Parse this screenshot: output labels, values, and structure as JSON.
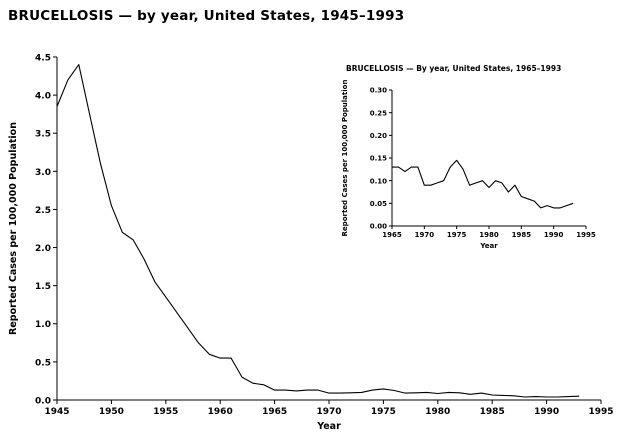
{
  "header": {
    "title": "BRUCELLOSIS — by year, United States, 1945–1993"
  },
  "chart_data": [
    {
      "type": "line",
      "title": "BRUCELLOSIS — by year, United States, 1945–1993",
      "xlabel": "Year",
      "ylabel": "Reported Cases per 100,000 Population",
      "xlim": [
        1945,
        1995
      ],
      "ylim": [
        0,
        4.5
      ],
      "xticks": [
        1945,
        1950,
        1955,
        1960,
        1965,
        1970,
        1975,
        1980,
        1985,
        1990,
        1995
      ],
      "yticks": [
        0.0,
        0.5,
        1.0,
        1.5,
        2.0,
        2.5,
        3.0,
        3.5,
        4.0,
        4.5
      ],
      "grid": false,
      "legend": "none",
      "line_color": "#000000",
      "x": [
        1945,
        1946,
        1947,
        1948,
        1949,
        1950,
        1951,
        1952,
        1953,
        1954,
        1955,
        1956,
        1957,
        1958,
        1959,
        1960,
        1961,
        1962,
        1963,
        1964,
        1965,
        1966,
        1967,
        1968,
        1969,
        1970,
        1971,
        1972,
        1973,
        1974,
        1975,
        1976,
        1977,
        1978,
        1979,
        1980,
        1981,
        1982,
        1983,
        1984,
        1985,
        1986,
        1987,
        1988,
        1989,
        1990,
        1991,
        1992,
        1993
      ],
      "y": [
        3.85,
        4.2,
        4.4,
        3.75,
        3.1,
        2.55,
        2.2,
        2.1,
        1.85,
        1.55,
        1.35,
        1.15,
        0.95,
        0.75,
        0.6,
        0.55,
        0.55,
        0.3,
        0.22,
        0.2,
        0.13,
        0.13,
        0.12,
        0.13,
        0.13,
        0.09,
        0.09,
        0.095,
        0.1,
        0.13,
        0.145,
        0.125,
        0.09,
        0.095,
        0.1,
        0.085,
        0.1,
        0.095,
        0.075,
        0.09,
        0.065,
        0.06,
        0.055,
        0.04,
        0.045,
        0.04,
        0.04,
        0.045,
        0.05
      ]
    },
    {
      "type": "line",
      "title": "BRUCELLOSIS — By year, United States, 1965–1993",
      "xlabel": "Year",
      "ylabel": "Reported Cases per 100,000 Population",
      "xlim": [
        1965,
        1995
      ],
      "ylim": [
        0,
        0.3
      ],
      "xticks": [
        1965,
        1970,
        1975,
        1980,
        1985,
        1990,
        1995
      ],
      "yticks": [
        0.0,
        0.05,
        0.1,
        0.15,
        0.2,
        0.25,
        0.3
      ],
      "grid": false,
      "legend": "none",
      "line_color": "#000000",
      "x": [
        1965,
        1966,
        1967,
        1968,
        1969,
        1970,
        1971,
        1972,
        1973,
        1974,
        1975,
        1976,
        1977,
        1978,
        1979,
        1980,
        1981,
        1982,
        1983,
        1984,
        1985,
        1986,
        1987,
        1988,
        1989,
        1990,
        1991,
        1992,
        1993
      ],
      "y": [
        0.13,
        0.13,
        0.12,
        0.13,
        0.13,
        0.09,
        0.09,
        0.095,
        0.1,
        0.13,
        0.145,
        0.125,
        0.09,
        0.095,
        0.1,
        0.085,
        0.1,
        0.095,
        0.075,
        0.09,
        0.065,
        0.06,
        0.055,
        0.04,
        0.045,
        0.04,
        0.04,
        0.045,
        0.05
      ]
    }
  ]
}
